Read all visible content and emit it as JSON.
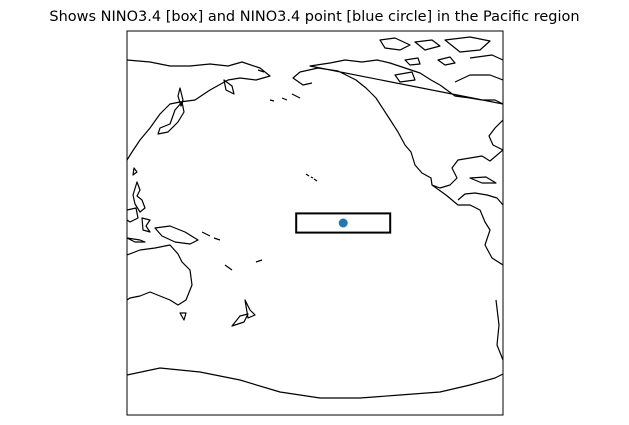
{
  "title": "Shows NINO3.4 [box] and NINO3.4 point [blue circle] in the Pacific region",
  "map": {
    "projection": "PlateCarree (central longitude 180)",
    "extent_lon": [
      100,
      300
    ],
    "extent_lat": [
      -100,
      100
    ],
    "nino34_box": {
      "lon": [
        190,
        240
      ],
      "lat": [
        -5,
        5
      ],
      "edge_color": "#000000"
    },
    "nino34_point": {
      "lon": 215,
      "lat": 0,
      "color": "#1f77b4"
    },
    "coastline_color": "#000000"
  }
}
